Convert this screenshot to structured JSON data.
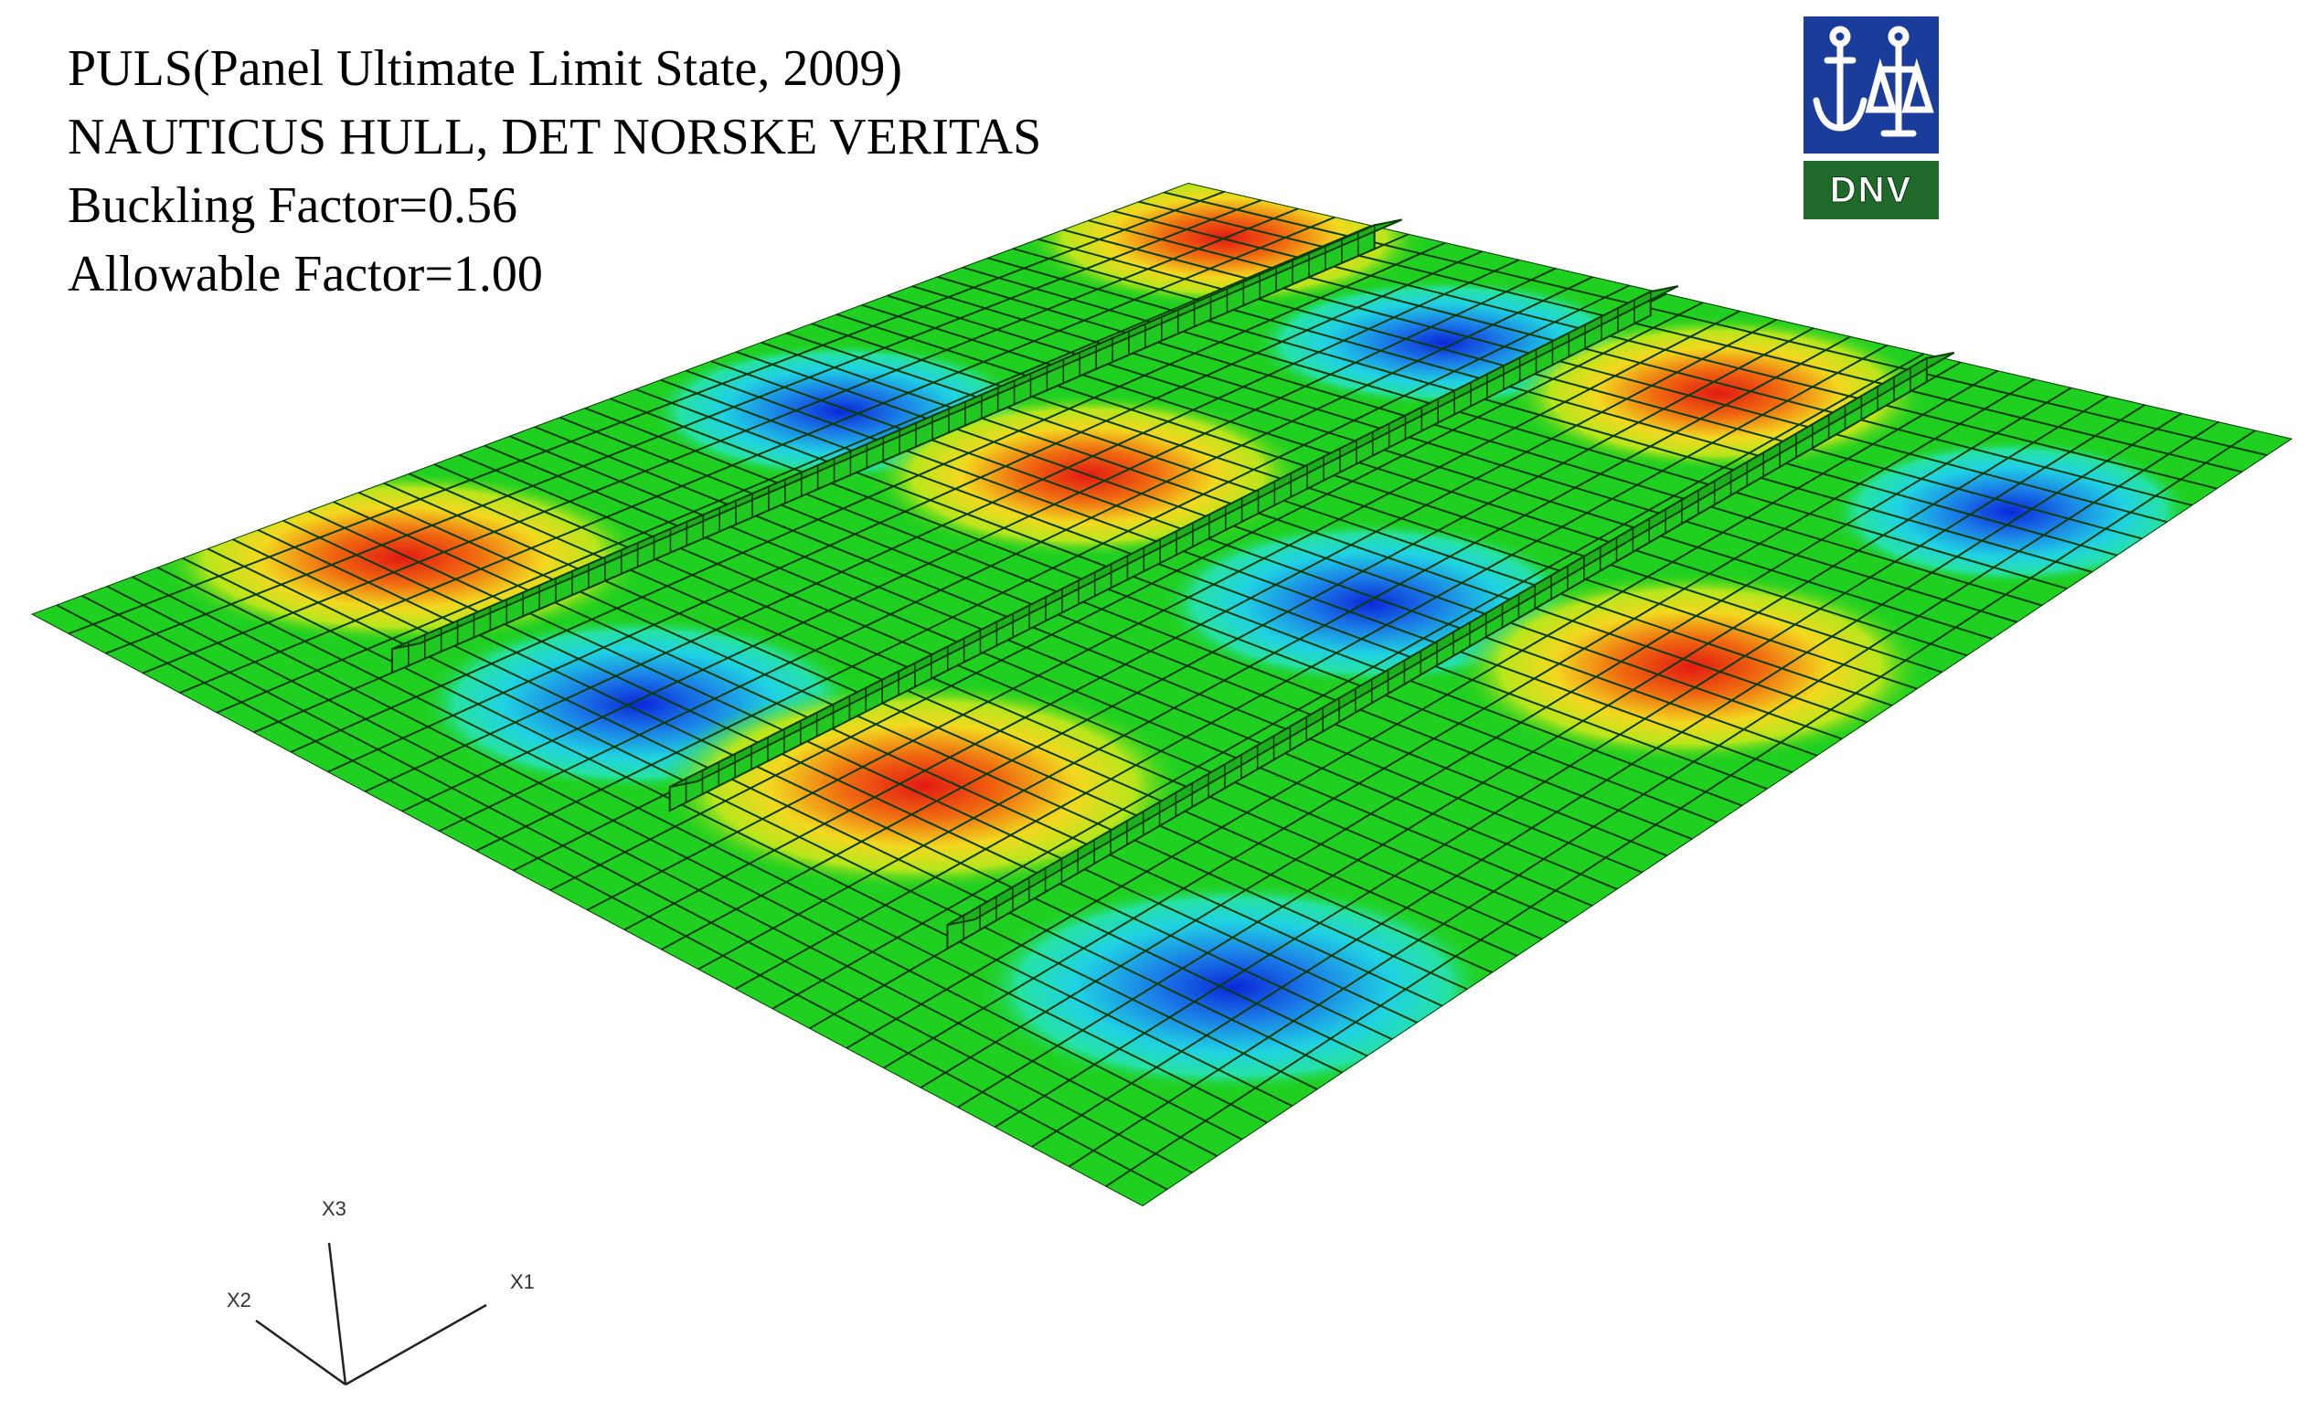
{
  "info": {
    "line1": "PULS(Panel Ultimate Limit State, 2009)",
    "line2": "NAUTICUS HULL, DET NORSKE VERITAS",
    "line3": "Buckling Factor=0.56",
    "line4": "Allowable Factor=1.00"
  },
  "logo": {
    "text": "DNV",
    "colors": {
      "top": "#1a3d9c",
      "bottom": "#1f6a2b"
    }
  },
  "axes": {
    "x1": "X1",
    "x2": "X2",
    "x3": "X3"
  },
  "colors": {
    "plate": "#1fd21f",
    "mesh": "#0b3d0b",
    "peak": "#e8201a",
    "trough": "#1438d8"
  }
}
